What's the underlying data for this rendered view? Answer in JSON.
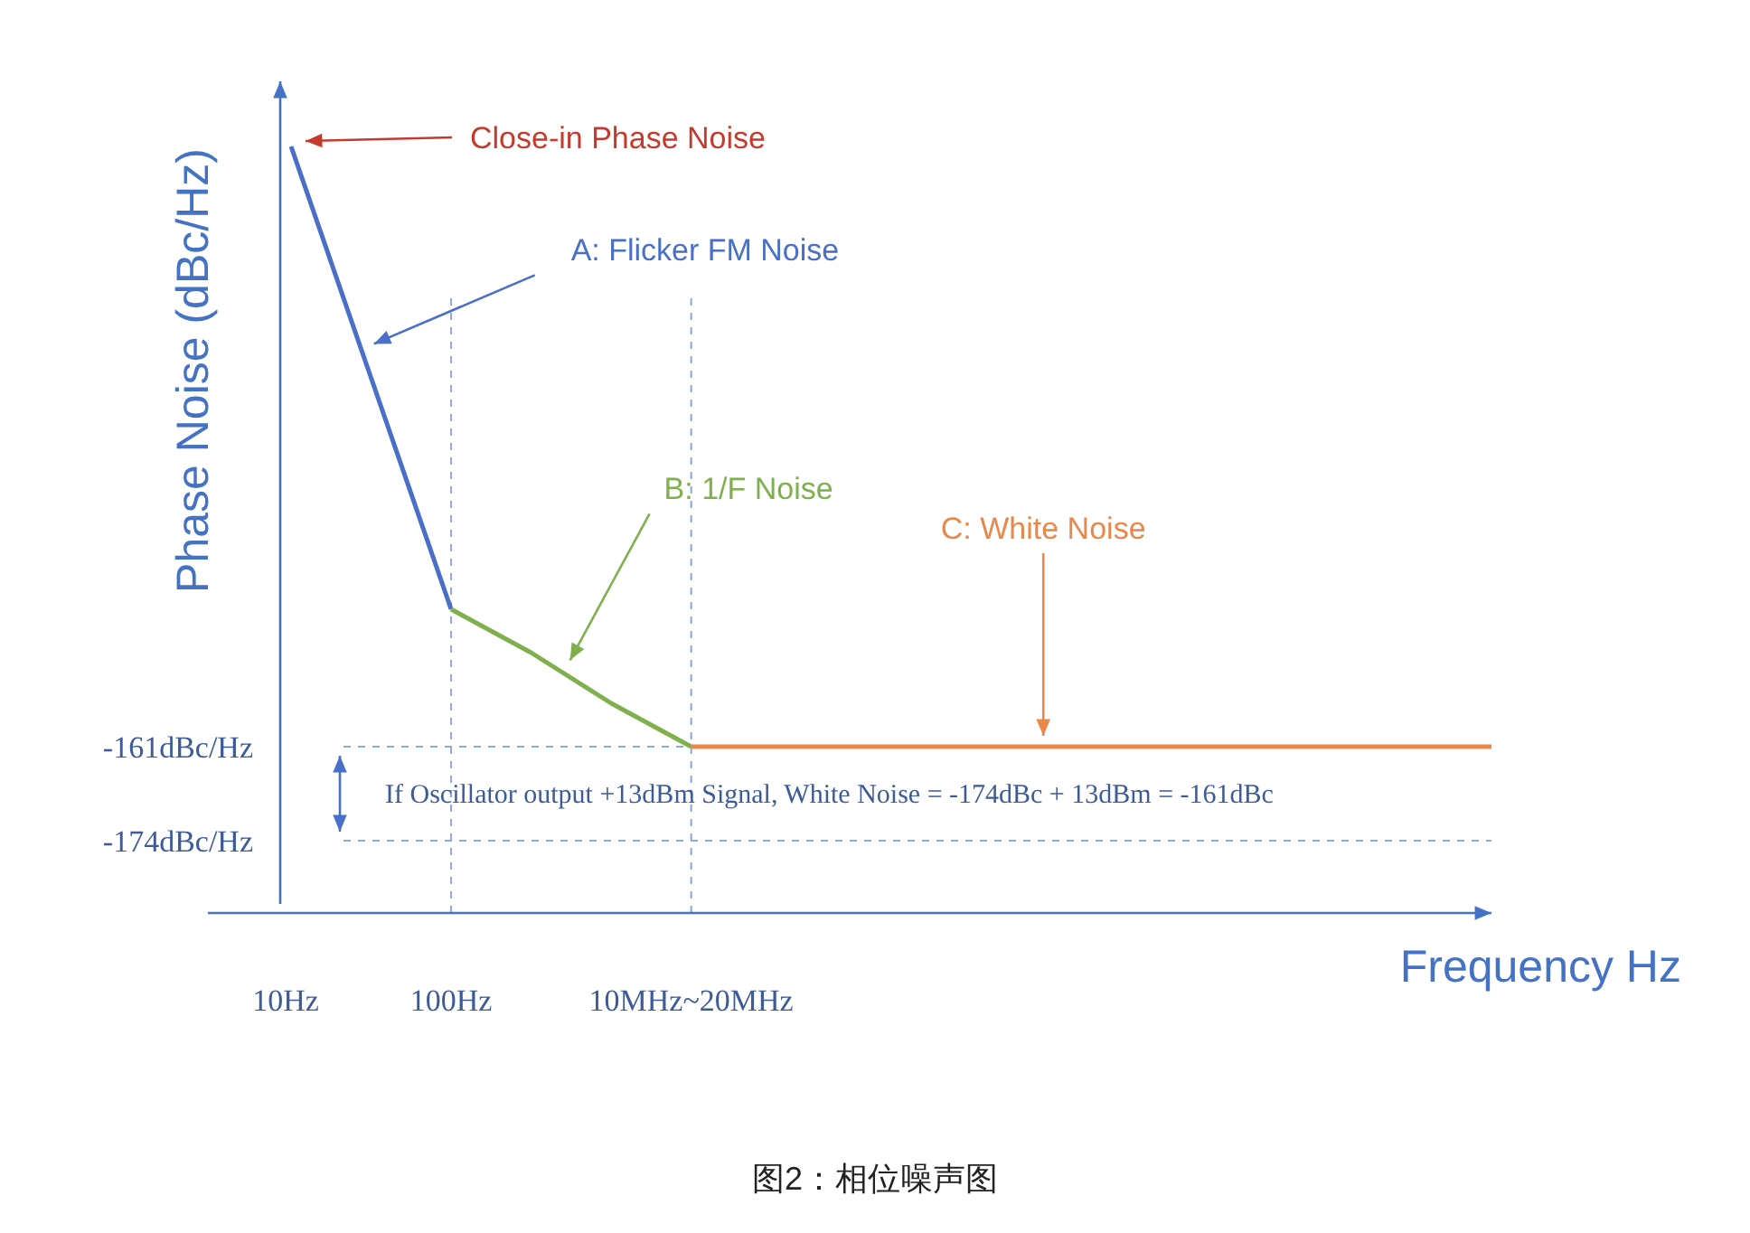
{
  "chart_data": {
    "type": "line",
    "xlabel": "Frequency Hz",
    "ylabel": "Phase Noise (dBc/Hz)",
    "categories": [
      "10Hz",
      null,
      "100Hz",
      null,
      null,
      "10MHz~20MHz",
      null,
      null,
      null,
      null,
      null,
      null,
      null,
      null,
      null,
      null
    ],
    "ylim": [
      -184,
      -69
    ],
    "yticks": [
      {
        "value": -161,
        "label": "-161dBc/Hz"
      },
      {
        "value": -174,
        "label": "-174dBc/Hz"
      }
    ],
    "grid": false,
    "marker": "none",
    "line_style": "solid",
    "series": [
      {
        "name": "A: Flicker FM Noise",
        "color": "#4a6fc9",
        "values": [
          -78,
          -110,
          -142,
          null,
          null,
          null,
          null,
          null,
          null,
          null,
          null,
          null,
          null,
          null,
          null,
          null
        ]
      },
      {
        "name": "B: 1/F Noise",
        "color": "#7fb04d",
        "values": [
          null,
          null,
          -142,
          -148,
          -155,
          -161,
          null,
          null,
          null,
          null,
          null,
          null,
          null,
          null,
          null,
          null
        ]
      },
      {
        "name": "C: White Noise",
        "color": "#e8884a",
        "values": [
          null,
          null,
          null,
          null,
          null,
          -161,
          -161,
          -161,
          -161,
          -161,
          -161,
          -161,
          -161,
          -161,
          -161,
          -161
        ]
      }
    ],
    "ref_lines": [
      {
        "axis": "y",
        "value": -161,
        "color": "#8fa6d8",
        "line_style": "dashed"
      },
      {
        "axis": "y",
        "value": -174,
        "color": "#8fa6d8",
        "line_style": "dashed"
      },
      {
        "axis": "x",
        "value": "100Hz",
        "color": "#8fa6d8",
        "line_style": "dashed"
      },
      {
        "axis": "x",
        "value": "10MHz~20MHz",
        "color": "#8fa6d8",
        "line_style": "dashed"
      }
    ],
    "annotations": [
      "Close-in Phase Noise",
      "If Oscillator output +13dBm Signal, White Noise = -174dBc + 13dBm = -161dBc",
      "图2：相位噪声图"
    ]
  }
}
